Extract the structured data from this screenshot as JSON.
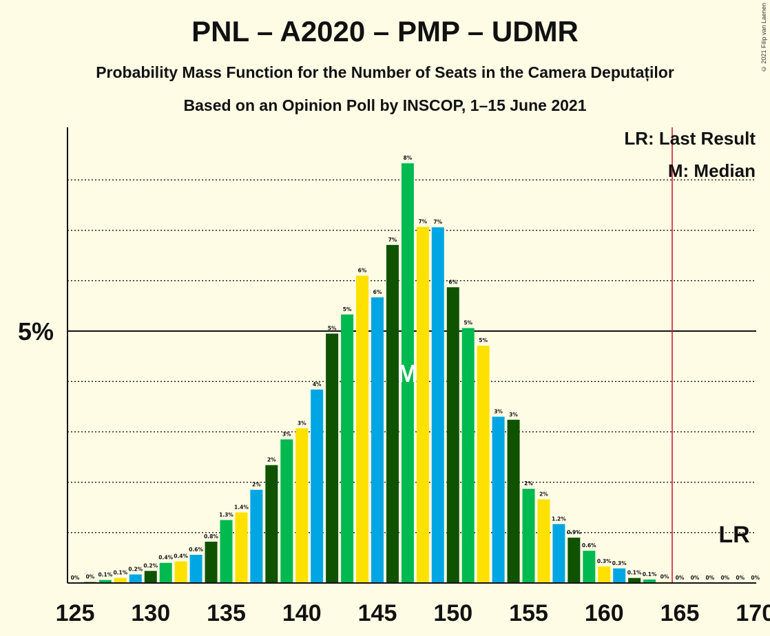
{
  "title": "PNL – A2020 – PMP – UDMR",
  "subtitle": "Probability Mass Function for the Number of Seats in the Camera Deputaților",
  "subtitle2": "Based on an Opinion Poll by INSCOP, 1–15 June 2021",
  "copyright": "© 2021 Filip van Laenen",
  "legend": {
    "lr": "LR: Last Result",
    "m": "M: Median"
  },
  "markers": {
    "lr_label": "LR",
    "median_label": "M",
    "last_result_seat": 165,
    "median_seat": 147
  },
  "colors": {
    "dark_green": "#0F5200",
    "green": "#00B94F",
    "yellow": "#FFE100",
    "blue": "#00A6E3",
    "lr_line": "#C8102E",
    "background": "#FFFCE5"
  },
  "chart_data": {
    "type": "bar",
    "x": [
      126,
      127,
      128,
      129,
      130,
      131,
      132,
      133,
      134,
      135,
      136,
      137,
      138,
      139,
      140,
      141,
      142,
      143,
      144,
      145,
      146,
      147,
      148,
      149,
      150,
      151,
      152,
      153,
      154,
      155,
      156,
      157,
      158,
      159,
      160,
      161,
      162,
      163,
      164,
      165,
      166,
      167,
      168,
      169,
      170
    ],
    "values": [
      0.02,
      0.06,
      0.1,
      0.17,
      0.24,
      0.4,
      0.43,
      0.56,
      0.82,
      1.25,
      1.4,
      1.85,
      2.34,
      2.85,
      3.07,
      3.84,
      4.95,
      5.33,
      6.1,
      5.67,
      6.71,
      8.33,
      7.07,
      7.06,
      5.87,
      5.06,
      4.71,
      3.3,
      3.24,
      1.87,
      1.66,
      1.17,
      0.9,
      0.64,
      0.33,
      0.29,
      0.1,
      0.07,
      0.02,
      0.0,
      0.0,
      0.0,
      0.0,
      0.0,
      0.0
    ],
    "labels": [
      "0%",
      "0.1%",
      "0.1%",
      "0.2%",
      "0.2%",
      "0.4%",
      "0.4%",
      "0.6%",
      "0.8%",
      "1.3%",
      "1.4%",
      "2%",
      "2%",
      "3%",
      "3%",
      "4%",
      "5%",
      "5%",
      "6%",
      "6%",
      "7%",
      "8%",
      "7%",
      "7%",
      "6%",
      "5%",
      "5%",
      "3%",
      "3%",
      "2%",
      "2%",
      "1.2%",
      "0.9%",
      "0.6%",
      "0.3%",
      "0.3%",
      "0.1%",
      "0.1%",
      "0%",
      "0%",
      "0%",
      "0%",
      "0%",
      "0%",
      "0%"
    ],
    "first_label": "0%",
    "colors": [
      "dark_green",
      "green",
      "yellow",
      "blue"
    ],
    "xlim": [
      125,
      170
    ],
    "ylim": [
      0,
      9
    ],
    "xticks": [
      125,
      130,
      135,
      140,
      145,
      150,
      155,
      160,
      165,
      170
    ],
    "yticks": [
      {
        "value": 5,
        "label": "5%"
      }
    ],
    "dotted_gridlines": [
      1,
      2,
      3,
      4,
      6,
      7,
      8
    ],
    "grid": true,
    "legend_position": "top-right"
  }
}
